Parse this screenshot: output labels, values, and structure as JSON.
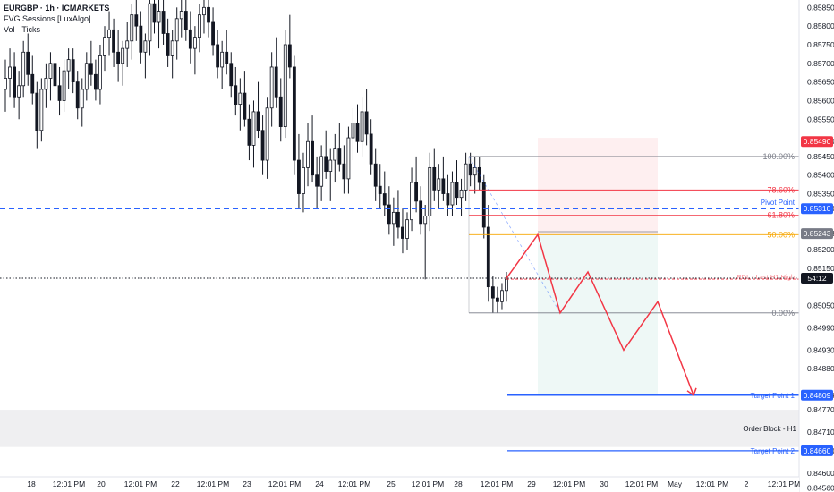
{
  "chart_data": {
    "type": "candlestick",
    "symbol": "EURGBP · 1h · ICMARKETS",
    "indicators": [
      "FVG Sessions [LuxAlgo]",
      "Vol · Ticks"
    ],
    "ylim": [
      0.8459,
      0.8587
    ],
    "y_ticks": [
      "0.85850",
      "0.85800",
      "0.85750",
      "0.85700",
      "0.85650",
      "0.85600",
      "0.85550",
      "0.85490",
      "0.85450",
      "0.85400",
      "0.85350",
      "0.85310",
      "0.85243",
      "0.85200",
      "0.85150",
      "0.85050",
      "0.84990",
      "0.84930",
      "0.84880",
      "0.84809",
      "0.84770",
      "0.84710",
      "0.84660",
      "0.84600",
      "0.84560"
    ],
    "x_ticks": [
      "18",
      "12:01 PM",
      "20",
      "12:01 PM",
      "22",
      "12:01 PM",
      "23",
      "12:01 PM",
      "24",
      "12:01 PM",
      "25",
      "12:01 PM",
      "28",
      "12:01 PM",
      "29",
      "12:01 PM",
      "30",
      "12:01 PM",
      "May",
      "12:01 PM",
      "2",
      "12:01 PM"
    ],
    "price_badges": [
      {
        "label": "0.85490",
        "price": 0.8549,
        "color": "#f23645"
      },
      {
        "label": "0.85310",
        "price": 0.8531,
        "color": "#2962ff"
      },
      {
        "label": "0.85243",
        "price": 0.85243,
        "color": "#787b86"
      },
      {
        "label": "54:12",
        "price": 0.85123,
        "color": "#131722"
      },
      {
        "label": "0.84809",
        "price": 0.84809,
        "color": "#2962ff"
      },
      {
        "label": "0.84660",
        "price": 0.8466,
        "color": "#2962ff"
      }
    ],
    "fib_levels": [
      {
        "label": "100.00%",
        "price": 0.8545,
        "color": "#787b86"
      },
      {
        "label": "78.60%",
        "price": 0.8536,
        "color": "#f23645"
      },
      {
        "label": "61.80%",
        "price": 0.85292,
        "color": "#f23645"
      },
      {
        "label": "50.00%",
        "price": 0.8524,
        "color": "#f7a600"
      },
      {
        "label": "0.00%",
        "price": 0.8503,
        "color": "#787b86"
      }
    ],
    "annotations": {
      "pivot_point": {
        "label": "Pivot Point",
        "price": 0.8531
      },
      "pdl": {
        "label": "PDL - Last H1 High",
        "price": 0.85123
      },
      "target_1": {
        "label": "Target Point 1",
        "price": 0.84809
      },
      "target_2": {
        "label": "Target Point 2",
        "price": 0.8466
      },
      "order_block": {
        "label": "Order Block - H1",
        "price_top": 0.8477,
        "price_bottom": 0.8467
      }
    },
    "current_price": 0.85123,
    "projection_path": [
      0.85123,
      0.8524,
      0.8503,
      0.8514,
      0.8493,
      0.8506,
      0.84809
    ],
    "candles": [
      [
        0.8563,
        0.8571,
        0.8557,
        0.8566
      ],
      [
        0.8566,
        0.8574,
        0.8561,
        0.8569
      ],
      [
        0.8569,
        0.8573,
        0.8558,
        0.8561
      ],
      [
        0.8561,
        0.8568,
        0.8555,
        0.8564
      ],
      [
        0.8564,
        0.8576,
        0.8561,
        0.8573
      ],
      [
        0.8573,
        0.8578,
        0.8564,
        0.8567
      ],
      [
        0.8567,
        0.8572,
        0.8559,
        0.8562
      ],
      [
        0.8562,
        0.8565,
        0.8547,
        0.8552
      ],
      [
        0.8552,
        0.8566,
        0.8549,
        0.8563
      ],
      [
        0.8563,
        0.857,
        0.8558,
        0.8566
      ],
      [
        0.8566,
        0.8573,
        0.856,
        0.857
      ],
      [
        0.857,
        0.8575,
        0.8561,
        0.8564
      ],
      [
        0.8564,
        0.8569,
        0.8556,
        0.856
      ],
      [
        0.856,
        0.8571,
        0.8557,
        0.8568
      ],
      [
        0.8568,
        0.8574,
        0.8563,
        0.8571
      ],
      [
        0.8571,
        0.8574,
        0.8562,
        0.8565
      ],
      [
        0.8565,
        0.8568,
        0.8555,
        0.8558
      ],
      [
        0.8558,
        0.8566,
        0.8553,
        0.8563
      ],
      [
        0.8563,
        0.8573,
        0.856,
        0.857
      ],
      [
        0.857,
        0.8576,
        0.8564,
        0.8567
      ],
      [
        0.8567,
        0.8571,
        0.856,
        0.8563
      ],
      [
        0.8563,
        0.8575,
        0.8559,
        0.8572
      ],
      [
        0.8572,
        0.858,
        0.8568,
        0.8577
      ],
      [
        0.8577,
        0.8584,
        0.8572,
        0.8579
      ],
      [
        0.8579,
        0.8582,
        0.8569,
        0.8573
      ],
      [
        0.8573,
        0.8579,
        0.8565,
        0.857
      ],
      [
        0.857,
        0.8576,
        0.8564,
        0.8574
      ],
      [
        0.8574,
        0.8581,
        0.8569,
        0.8576
      ],
      [
        0.8576,
        0.8586,
        0.8571,
        0.8583
      ],
      [
        0.8583,
        0.8588,
        0.8576,
        0.858
      ],
      [
        0.858,
        0.8584,
        0.857,
        0.8573
      ],
      [
        0.8573,
        0.8578,
        0.8566,
        0.8576
      ],
      [
        0.8576,
        0.8588,
        0.8572,
        0.8586
      ],
      [
        0.8586,
        0.8588,
        0.8578,
        0.8581
      ],
      [
        0.8581,
        0.8587,
        0.8574,
        0.8584
      ],
      [
        0.8584,
        0.8588,
        0.8575,
        0.8578
      ],
      [
        0.8578,
        0.8582,
        0.8569,
        0.8572
      ],
      [
        0.8572,
        0.8579,
        0.8566,
        0.8576
      ],
      [
        0.8576,
        0.8585,
        0.8571,
        0.8582
      ],
      [
        0.8582,
        0.8588,
        0.8577,
        0.8584
      ],
      [
        0.8584,
        0.8588,
        0.8576,
        0.8579
      ],
      [
        0.8579,
        0.8584,
        0.857,
        0.8574
      ],
      [
        0.8574,
        0.858,
        0.8567,
        0.8577
      ],
      [
        0.8577,
        0.8586,
        0.8573,
        0.8583
      ],
      [
        0.8583,
        0.8588,
        0.8578,
        0.8585
      ],
      [
        0.8585,
        0.8588,
        0.8577,
        0.8581
      ],
      [
        0.8581,
        0.8585,
        0.8572,
        0.8575
      ],
      [
        0.8575,
        0.8579,
        0.8566,
        0.8569
      ],
      [
        0.8569,
        0.8576,
        0.8563,
        0.8573
      ],
      [
        0.8573,
        0.8579,
        0.8567,
        0.857
      ],
      [
        0.857,
        0.8573,
        0.8561,
        0.8564
      ],
      [
        0.8564,
        0.8569,
        0.8556,
        0.8559
      ],
      [
        0.8559,
        0.8566,
        0.8552,
        0.8562
      ],
      [
        0.8562,
        0.8568,
        0.8553,
        0.8555
      ],
      [
        0.8555,
        0.8559,
        0.8544,
        0.8548
      ],
      [
        0.8548,
        0.856,
        0.8542,
        0.8557
      ],
      [
        0.8557,
        0.8565,
        0.855,
        0.8552
      ],
      [
        0.8552,
        0.8556,
        0.854,
        0.8544
      ],
      [
        0.8544,
        0.8561,
        0.8539,
        0.8558
      ],
      [
        0.8558,
        0.8573,
        0.8553,
        0.8569
      ],
      [
        0.8569,
        0.8577,
        0.8558,
        0.8561
      ],
      [
        0.8561,
        0.8566,
        0.8549,
        0.8553
      ],
      [
        0.8553,
        0.8579,
        0.855,
        0.8575
      ],
      [
        0.8575,
        0.8583,
        0.8566,
        0.8569
      ],
      [
        0.8569,
        0.8572,
        0.854,
        0.8544
      ],
      [
        0.8544,
        0.8551,
        0.8531,
        0.8535
      ],
      [
        0.8535,
        0.8546,
        0.853,
        0.8542
      ],
      [
        0.8542,
        0.8554,
        0.8537,
        0.8549
      ],
      [
        0.8549,
        0.8556,
        0.8538,
        0.854
      ],
      [
        0.854,
        0.8545,
        0.8531,
        0.8537
      ],
      [
        0.8537,
        0.8548,
        0.8533,
        0.8545
      ],
      [
        0.8545,
        0.8552,
        0.8539,
        0.8541
      ],
      [
        0.8541,
        0.8547,
        0.8533,
        0.8544
      ],
      [
        0.8544,
        0.8551,
        0.8538,
        0.8547
      ],
      [
        0.8547,
        0.8554,
        0.8541,
        0.8543
      ],
      [
        0.8543,
        0.8548,
        0.8535,
        0.8539
      ],
      [
        0.8539,
        0.8553,
        0.8535,
        0.855
      ],
      [
        0.855,
        0.8558,
        0.8544,
        0.8554
      ],
      [
        0.8554,
        0.8559,
        0.8546,
        0.8549
      ],
      [
        0.8549,
        0.8561,
        0.8545,
        0.8557
      ],
      [
        0.8557,
        0.8563,
        0.8548,
        0.8551
      ],
      [
        0.8551,
        0.8555,
        0.854,
        0.8543
      ],
      [
        0.8543,
        0.8547,
        0.8533,
        0.8537
      ],
      [
        0.8537,
        0.8543,
        0.8531,
        0.8535
      ],
      [
        0.8535,
        0.8541,
        0.8529,
        0.8532
      ],
      [
        0.8532,
        0.8537,
        0.8524,
        0.8527
      ],
      [
        0.8527,
        0.8534,
        0.8521,
        0.853
      ],
      [
        0.853,
        0.8536,
        0.8523,
        0.8526
      ],
      [
        0.8526,
        0.8531,
        0.8519,
        0.8523
      ],
      [
        0.8523,
        0.853,
        0.852,
        0.8528
      ],
      [
        0.8528,
        0.8542,
        0.8525,
        0.8538
      ],
      [
        0.8538,
        0.8545,
        0.853,
        0.8533
      ],
      [
        0.8533,
        0.8537,
        0.8524,
        0.8527
      ],
      [
        0.8527,
        0.8532,
        0.8512,
        0.8529
      ],
      [
        0.8529,
        0.8546,
        0.8525,
        0.8542
      ],
      [
        0.8542,
        0.8547,
        0.8533,
        0.8536
      ],
      [
        0.8536,
        0.8543,
        0.8531,
        0.8539
      ],
      [
        0.8539,
        0.8545,
        0.8533,
        0.8535
      ],
      [
        0.8535,
        0.854,
        0.8529,
        0.8532
      ],
      [
        0.8532,
        0.8541,
        0.8529,
        0.8538
      ],
      [
        0.8538,
        0.8544,
        0.8532,
        0.8534
      ],
      [
        0.8534,
        0.8539,
        0.8529,
        0.8536
      ],
      [
        0.8536,
        0.8546,
        0.8533,
        0.8543
      ],
      [
        0.8543,
        0.8546,
        0.8537,
        0.854
      ],
      [
        0.854,
        0.8545,
        0.8535,
        0.8542
      ],
      [
        0.8542,
        0.8545,
        0.8536,
        0.8538
      ],
      [
        0.8538,
        0.854,
        0.8523,
        0.8526
      ],
      [
        0.8526,
        0.8532,
        0.8506,
        0.851
      ],
      [
        0.851,
        0.8513,
        0.8503,
        0.8507
      ],
      [
        0.8507,
        0.851,
        0.8503,
        0.8506
      ],
      [
        0.8506,
        0.8511,
        0.8504,
        0.8509
      ],
      [
        0.8509,
        0.8514,
        0.8506,
        0.8512
      ]
    ]
  }
}
